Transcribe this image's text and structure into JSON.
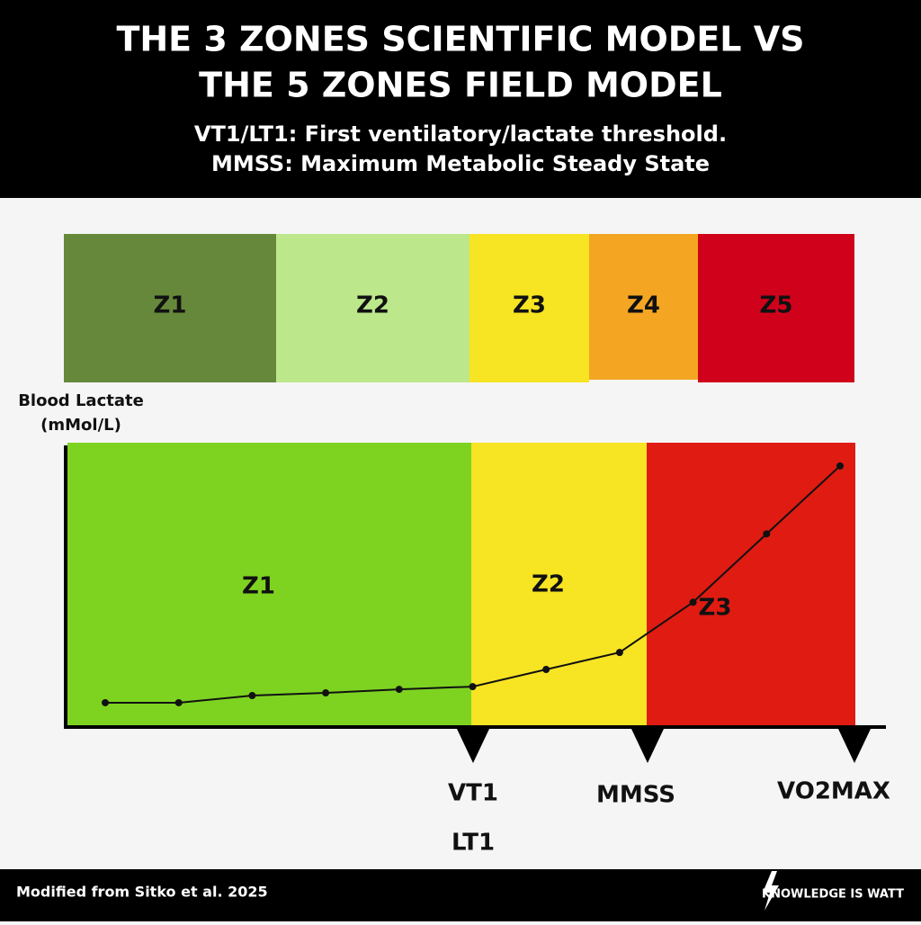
{
  "header": {
    "title_lines": [
      "THE 3 ZONES SCIENTIFIC MODEL VS",
      "THE 5 ZONES FIELD MODEL"
    ],
    "subtitle_lines": [
      "VT1/LT1: First ventilatory/lactate threshold.",
      "MMSS: Maximum Metabolic Steady State"
    ]
  },
  "field_zones": [
    {
      "label": "Z1",
      "color": "#66883a"
    },
    {
      "label": "Z2",
      "color": "#bce78b"
    },
    {
      "label": "Z3",
      "color": "#f7e423"
    },
    {
      "label": "Z4",
      "color": "#f4a623"
    },
    {
      "label": "Z5",
      "color": "#d0021b"
    }
  ],
  "chart_data": {
    "type": "line",
    "y_label_lines": [
      "Blood Lactate",
      "(mMol/L)"
    ],
    "ylim": [
      0,
      16
    ],
    "values": [
      1.36,
      1.36,
      1.76,
      1.91,
      2.11,
      2.26,
      3.22,
      4.17,
      6.98,
      10.8,
      14.6
    ],
    "color": "#111111",
    "zones": [
      {
        "label": "Z1",
        "color": "#7ed321"
      },
      {
        "label": "Z2",
        "color": "#f7e423"
      },
      {
        "label": "Z3",
        "color": "#e01b12"
      }
    ],
    "thresholds": [
      {
        "labels": [
          "VT1",
          "LT1"
        ]
      },
      {
        "labels": [
          "MMSS"
        ]
      },
      {
        "labels": [
          "VO2MAX"
        ]
      }
    ]
  },
  "footer": {
    "credit": "Modified from Sitko et al. 2025",
    "brand": "KNOWLEDGE IS WATT"
  }
}
